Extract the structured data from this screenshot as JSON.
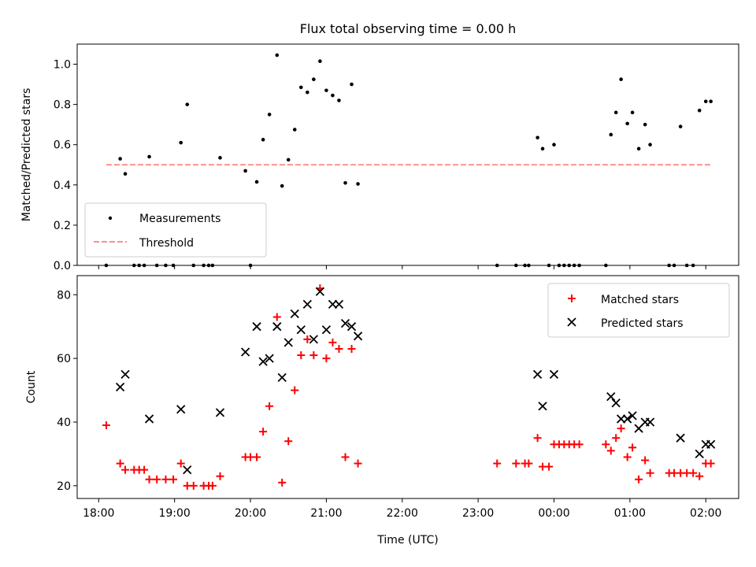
{
  "chart_data": [
    {
      "type": "scatter",
      "title": "Flux total observing time = 0.00 h",
      "xlabel": "",
      "ylabel": "Matched/Predicted stars",
      "xlim": [
        "17:43",
        "02:26"
      ],
      "ylim": [
        0,
        1.1
      ],
      "yticks": [
        0.0,
        0.2,
        0.4,
        0.6,
        0.8,
        1.0
      ],
      "legend": "lower-left",
      "series": [
        {
          "name": "Measurements",
          "marker": "dot",
          "color": "#000000",
          "points": [
            [
              "18:06",
              0.0
            ],
            [
              "18:17",
              0.53
            ],
            [
              "18:21",
              0.455
            ],
            [
              "18:28",
              0.0
            ],
            [
              "18:32",
              0.0
            ],
            [
              "18:36",
              0.0
            ],
            [
              "18:40",
              0.54
            ],
            [
              "18:46",
              0.0
            ],
            [
              "18:53",
              0.0
            ],
            [
              "18:59",
              0.0
            ],
            [
              "19:05",
              0.61
            ],
            [
              "19:10",
              0.8
            ],
            [
              "19:15",
              0.0
            ],
            [
              "19:23",
              0.0
            ],
            [
              "19:27",
              0.0
            ],
            [
              "19:30",
              0.0
            ],
            [
              "19:36",
              0.535
            ],
            [
              "19:56",
              0.47
            ],
            [
              "20:00",
              0.0
            ],
            [
              "20:05",
              0.415
            ],
            [
              "20:10",
              0.625
            ],
            [
              "20:15",
              0.75
            ],
            [
              "20:21",
              1.045
            ],
            [
              "20:25",
              0.395
            ],
            [
              "20:30",
              0.525
            ],
            [
              "20:35",
              0.675
            ],
            [
              "20:40",
              0.885
            ],
            [
              "20:45",
              0.86
            ],
            [
              "20:50",
              0.925
            ],
            [
              "20:55",
              1.015
            ],
            [
              "21:00",
              0.87
            ],
            [
              "21:05",
              0.845
            ],
            [
              "21:10",
              0.82
            ],
            [
              "21:15",
              0.41
            ],
            [
              "21:20",
              0.9
            ],
            [
              "21:25",
              0.405
            ],
            [
              "23:15",
              0.0
            ],
            [
              "23:30",
              0.0
            ],
            [
              "23:37",
              0.0
            ],
            [
              "23:40",
              0.0
            ],
            [
              "23:47",
              0.635
            ],
            [
              "23:51",
              0.58
            ],
            [
              "23:56",
              0.0
            ],
            [
              "24:00",
              0.6
            ],
            [
              "24:04",
              0.0
            ],
            [
              "24:08",
              0.0
            ],
            [
              "24:12",
              0.0
            ],
            [
              "24:16",
              0.0
            ],
            [
              "24:20",
              0.0
            ],
            [
              "24:41",
              0.0
            ],
            [
              "24:45",
              0.65
            ],
            [
              "24:49",
              0.76
            ],
            [
              "24:53",
              0.925
            ],
            [
              "24:58",
              0.705
            ],
            [
              "25:02",
              0.76
            ],
            [
              "25:07",
              0.58
            ],
            [
              "25:12",
              0.7
            ],
            [
              "25:16",
              0.6
            ],
            [
              "25:31",
              0.0
            ],
            [
              "25:35",
              0.0
            ],
            [
              "25:40",
              0.69
            ],
            [
              "25:45",
              0.0
            ],
            [
              "25:50",
              0.0
            ],
            [
              "25:55",
              0.77
            ],
            [
              "26:00",
              0.815
            ],
            [
              "26:04",
              0.815
            ]
          ]
        },
        {
          "name": "Threshold",
          "line": "dashed",
          "color": "#ff7f7f",
          "points": [
            [
              "18:06",
              0.5
            ],
            [
              "26:04",
              0.5
            ]
          ]
        }
      ]
    },
    {
      "type": "scatter",
      "title": "",
      "xlabel": "Time (UTC)",
      "ylabel": "Count",
      "xlim": [
        "17:43",
        "02:26"
      ],
      "ylim": [
        16,
        86
      ],
      "yticks": [
        20,
        40,
        60,
        80
      ],
      "xticks": [
        "18:00",
        "19:00",
        "20:00",
        "21:00",
        "22:00",
        "23:00",
        "00:00",
        "01:00",
        "02:00"
      ],
      "legend": "upper-right",
      "series": [
        {
          "name": "Matched stars",
          "marker": "plus",
          "color": "#ff0000",
          "points": [
            [
              "18:06",
              39
            ],
            [
              "18:17",
              27
            ],
            [
              "18:21",
              25
            ],
            [
              "18:28",
              25
            ],
            [
              "18:32",
              25
            ],
            [
              "18:36",
              25
            ],
            [
              "18:40",
              22
            ],
            [
              "18:46",
              22
            ],
            [
              "18:53",
              22
            ],
            [
              "18:59",
              22
            ],
            [
              "19:05",
              27
            ],
            [
              "19:10",
              20
            ],
            [
              "19:15",
              20
            ],
            [
              "19:23",
              20
            ],
            [
              "19:27",
              20
            ],
            [
              "19:30",
              20
            ],
            [
              "19:36",
              23
            ],
            [
              "19:56",
              29
            ],
            [
              "20:00",
              29
            ],
            [
              "20:05",
              29
            ],
            [
              "20:10",
              37
            ],
            [
              "20:15",
              45
            ],
            [
              "20:21",
              73
            ],
            [
              "20:25",
              21
            ],
            [
              "20:30",
              34
            ],
            [
              "20:35",
              50
            ],
            [
              "20:40",
              61
            ],
            [
              "20:45",
              66
            ],
            [
              "20:50",
              61
            ],
            [
              "20:55",
              82
            ],
            [
              "21:00",
              60
            ],
            [
              "21:05",
              65
            ],
            [
              "21:10",
              63
            ],
            [
              "21:15",
              29
            ],
            [
              "21:20",
              63
            ],
            [
              "21:25",
              27
            ],
            [
              "23:15",
              27
            ],
            [
              "23:30",
              27
            ],
            [
              "23:37",
              27
            ],
            [
              "23:40",
              27
            ],
            [
              "23:47",
              35
            ],
            [
              "23:51",
              26
            ],
            [
              "23:56",
              26
            ],
            [
              "24:00",
              33
            ],
            [
              "24:04",
              33
            ],
            [
              "24:08",
              33
            ],
            [
              "24:12",
              33
            ],
            [
              "24:16",
              33
            ],
            [
              "24:20",
              33
            ],
            [
              "24:41",
              33
            ],
            [
              "24:45",
              31
            ],
            [
              "24:49",
              35
            ],
            [
              "24:53",
              38
            ],
            [
              "24:58",
              29
            ],
            [
              "25:02",
              32
            ],
            [
              "25:07",
              22
            ],
            [
              "25:12",
              28
            ],
            [
              "25:16",
              24
            ],
            [
              "25:31",
              24
            ],
            [
              "25:35",
              24
            ],
            [
              "25:40",
              24
            ],
            [
              "25:45",
              24
            ],
            [
              "25:50",
              24
            ],
            [
              "25:55",
              23
            ],
            [
              "26:00",
              27
            ],
            [
              "26:04",
              27
            ]
          ]
        },
        {
          "name": "Predicted stars",
          "marker": "x",
          "color": "#000000",
          "points": [
            [
              "18:17",
              51
            ],
            [
              "18:21",
              55
            ],
            [
              "18:40",
              41
            ],
            [
              "19:05",
              44
            ],
            [
              "19:10",
              25
            ],
            [
              "19:36",
              43
            ],
            [
              "19:56",
              62
            ],
            [
              "20:05",
              70
            ],
            [
              "20:10",
              59
            ],
            [
              "20:15",
              60
            ],
            [
              "20:21",
              70
            ],
            [
              "20:25",
              54
            ],
            [
              "20:30",
              65
            ],
            [
              "20:35",
              74
            ],
            [
              "20:40",
              69
            ],
            [
              "20:45",
              77
            ],
            [
              "20:50",
              66
            ],
            [
              "20:55",
              81
            ],
            [
              "21:00",
              69
            ],
            [
              "21:05",
              77
            ],
            [
              "21:10",
              77
            ],
            [
              "21:15",
              71
            ],
            [
              "21:20",
              70
            ],
            [
              "21:25",
              67
            ],
            [
              "23:47",
              55
            ],
            [
              "23:51",
              45
            ],
            [
              "24:00",
              55
            ],
            [
              "24:45",
              48
            ],
            [
              "24:49",
              46
            ],
            [
              "24:53",
              41
            ],
            [
              "24:58",
              41
            ],
            [
              "25:02",
              42
            ],
            [
              "25:07",
              38
            ],
            [
              "25:12",
              40
            ],
            [
              "25:16",
              40
            ],
            [
              "25:40",
              35
            ],
            [
              "25:55",
              30
            ],
            [
              "26:00",
              33
            ],
            [
              "26:04",
              33
            ]
          ]
        }
      ]
    }
  ]
}
